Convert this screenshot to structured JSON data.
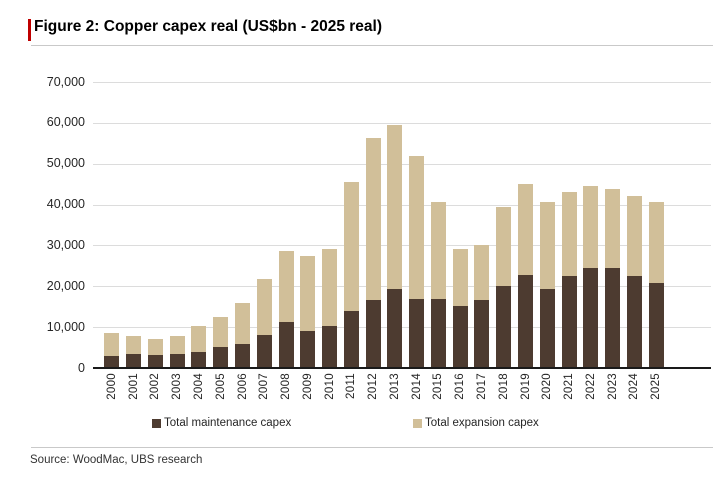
{
  "header": {
    "title": "Figure 2: Copper capex real (US$bn - 2025 real)"
  },
  "footer": {
    "source": "Source: WoodMac, UBS research"
  },
  "colors": {
    "accent_red": "#bf0000",
    "maintenance": "#4d3b30",
    "expansion": "#d1bf99",
    "gridline": "#dcdcdc",
    "axis": "#1a1a1a"
  },
  "chart_data": {
    "type": "bar",
    "stacked": true,
    "title": "Figure 2: Copper capex real (US$bn - 2025 real)",
    "xlabel": "",
    "ylabel": "",
    "ylim": [
      0,
      70000
    ],
    "ytick_step": 10000,
    "ytick_labels": [
      "0",
      "10,000",
      "20,000",
      "30,000",
      "40,000",
      "50,000",
      "60,000",
      "70,000"
    ],
    "grid": "horizontal",
    "legend_position": "bottom",
    "categories": [
      "2000",
      "2001",
      "2002",
      "2003",
      "2004",
      "2005",
      "2006",
      "2007",
      "2008",
      "2009",
      "2010",
      "2011",
      "2012",
      "2013",
      "2014",
      "2015",
      "2016",
      "2017",
      "2018",
      "2019",
      "2020",
      "2021",
      "2022",
      "2023",
      "2024",
      "2025"
    ],
    "series": [
      {
        "name": "Total maintenance capex",
        "color": "#4d3b30",
        "values": [
          3000,
          3400,
          3300,
          3400,
          4000,
          5100,
          6000,
          8000,
          11300,
          9000,
          10400,
          14000,
          16600,
          19400,
          16800,
          16800,
          15300,
          16700,
          20000,
          22700,
          19300,
          22400,
          24500,
          24600,
          22600,
          20900
        ]
      },
      {
        "name": "Total expansion capex",
        "color": "#d1bf99",
        "values": [
          5600,
          4500,
          3800,
          4500,
          6300,
          7300,
          9900,
          13800,
          17400,
          18300,
          18800,
          31600,
          39800,
          40100,
          35000,
          23800,
          13900,
          13500,
          19300,
          22300,
          21300,
          20800,
          20000,
          19100,
          19500,
          19700
        ]
      }
    ],
    "stacked_totals": [
      8600,
      7900,
      7100,
      7900,
      10300,
      12400,
      15900,
      21800,
      28700,
      27300,
      29200,
      45600,
      56400,
      59500,
      51800,
      40600,
      29200,
      30200,
      39300,
      45000,
      40600,
      43200,
      44500,
      43700,
      42100,
      40600
    ]
  }
}
